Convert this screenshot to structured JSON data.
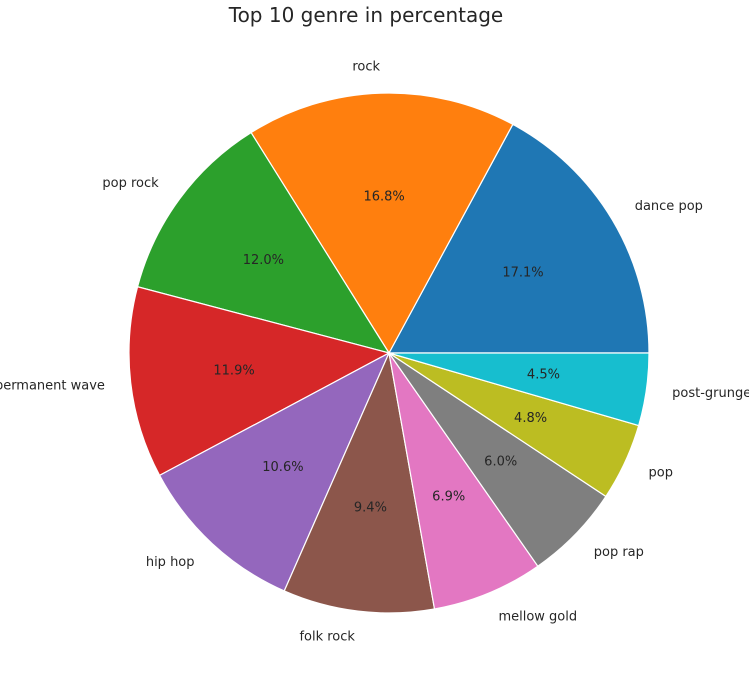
{
  "chart_data": {
    "type": "pie",
    "title": "Top 10 genre in percentage",
    "slices": [
      {
        "label": "dance pop",
        "value": 17.1,
        "pct_label": "17.1%",
        "color": "#1f77b4"
      },
      {
        "label": "rock",
        "value": 16.8,
        "pct_label": "16.8%",
        "color": "#ff7f0e"
      },
      {
        "label": "pop rock",
        "value": 12.0,
        "pct_label": "12.0%",
        "color": "#2ca02c"
      },
      {
        "label": "permanent wave",
        "value": 11.9,
        "pct_label": "11.9%",
        "color": "#d62728"
      },
      {
        "label": "hip hop",
        "value": 10.6,
        "pct_label": "10.6%",
        "color": "#9467bd"
      },
      {
        "label": "folk rock",
        "value": 9.4,
        "pct_label": "9.4%",
        "color": "#8c564b"
      },
      {
        "label": "mellow gold",
        "value": 6.9,
        "pct_label": "6.9%",
        "color": "#e377c2"
      },
      {
        "label": "pop rap",
        "value": 6.0,
        "pct_label": "6.0%",
        "color": "#7f7f7f"
      },
      {
        "label": "pop",
        "value": 4.8,
        "pct_label": "4.8%",
        "color": "#bcbd22"
      },
      {
        "label": "post-grunge",
        "value": 4.5,
        "pct_label": "4.5%",
        "color": "#17becf"
      }
    ],
    "start_angle_deg": 0,
    "direction": "counterclockwise"
  }
}
